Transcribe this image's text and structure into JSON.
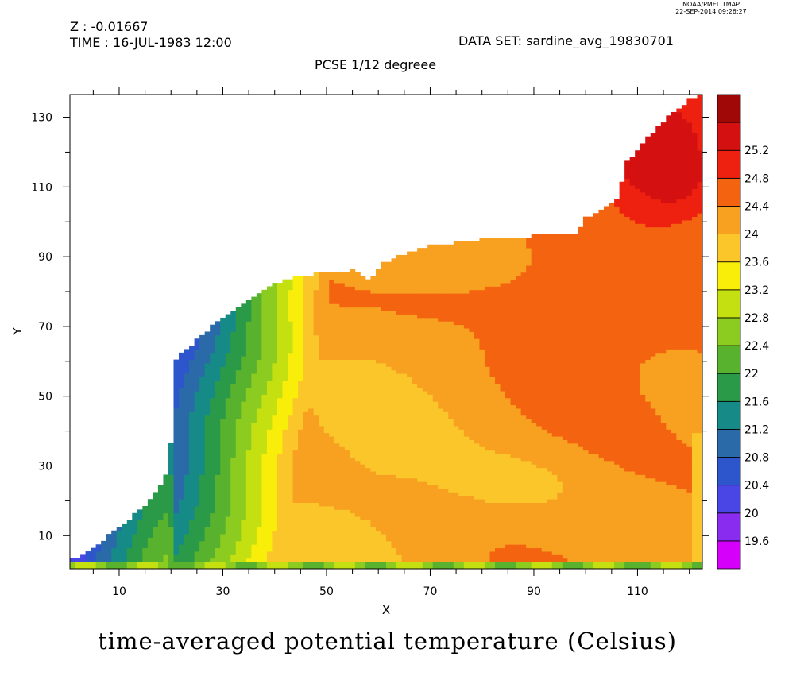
{
  "stamp": {
    "line1": "NOAA/PMEL TMAP",
    "line2": "22-SEP-2014 09:26:27"
  },
  "header": {
    "z_line": "Z : -0.01667",
    "time_line": "TIME : 16-JUL-1983 12:00",
    "dataset_line": "DATA SET: sardine_avg_19830701",
    "subtitle": "PCSE 1/12 degreee"
  },
  "chart_data": {
    "type": "heatmap",
    "title": "time-averaged potential temperature (Celsius)",
    "xlabel": "X",
    "ylabel": "Y",
    "xlim": [
      0.5,
      122.5
    ],
    "ylim": [
      0.5,
      136.5
    ],
    "xticks": [
      10,
      30,
      50,
      70,
      90,
      110
    ],
    "yticks": [
      10,
      30,
      50,
      70,
      90,
      110,
      130
    ],
    "colorbar": {
      "levels": [
        19.6,
        20,
        20.4,
        20.8,
        21.2,
        21.6,
        22,
        22.4,
        22.8,
        23.2,
        23.6,
        24,
        24.4,
        24.8,
        25.2
      ],
      "labels": [
        "19.6",
        "20",
        "20.4",
        "20.8",
        "21.2",
        "21.6",
        "22",
        "22.4",
        "22.8",
        "23.2",
        "23.6",
        "24",
        "24.4",
        "24.8",
        "25.2"
      ],
      "colors": [
        "#d500f9",
        "#8a2cf0",
        "#4a46e6",
        "#2d55cc",
        "#2a6aa8",
        "#168a86",
        "#2a9a48",
        "#58b22e",
        "#8ccc20",
        "#c4e010",
        "#f8ee0a",
        "#fac62a",
        "#f8a020",
        "#f46410",
        "#ee2010",
        "#d41010",
        "#a00808"
      ]
    },
    "land_boundary_y_by_x": [
      [
        1,
        3
      ],
      [
        5,
        6
      ],
      [
        8,
        10
      ],
      [
        10,
        12
      ],
      [
        13,
        16
      ],
      [
        15,
        18
      ],
      [
        17,
        22
      ],
      [
        19,
        27
      ],
      [
        20,
        36
      ],
      [
        20,
        58
      ],
      [
        22,
        62
      ],
      [
        25,
        66
      ],
      [
        28,
        70
      ],
      [
        32,
        74
      ],
      [
        36,
        78
      ],
      [
        40,
        82
      ],
      [
        44,
        84
      ],
      [
        48,
        85
      ],
      [
        55,
        86
      ],
      [
        58,
        83
      ],
      [
        61,
        88
      ],
      [
        64,
        90
      ],
      [
        70,
        93
      ],
      [
        80,
        95
      ],
      [
        90,
        96
      ],
      [
        98,
        96
      ],
      [
        100,
        101
      ],
      [
        103,
        103
      ],
      [
        106,
        106
      ],
      [
        108,
        117
      ],
      [
        112,
        124
      ],
      [
        116,
        130
      ],
      [
        120,
        135
      ],
      [
        122,
        136
      ]
    ],
    "field_notes": [
      "Coastal band cold (about 20-22) in southwest near x 3-20, warming to 23-24 eastward",
      "Interior mostly 24.0-24.4 with warm 24.4-24.8 band from x 55-110 at y 60-95",
      "Warm core above 24.8 in the northeast corner near x 105-120, y 105-135",
      "Narrow strip y 1-2 along bottom edge near 22-23"
    ]
  }
}
